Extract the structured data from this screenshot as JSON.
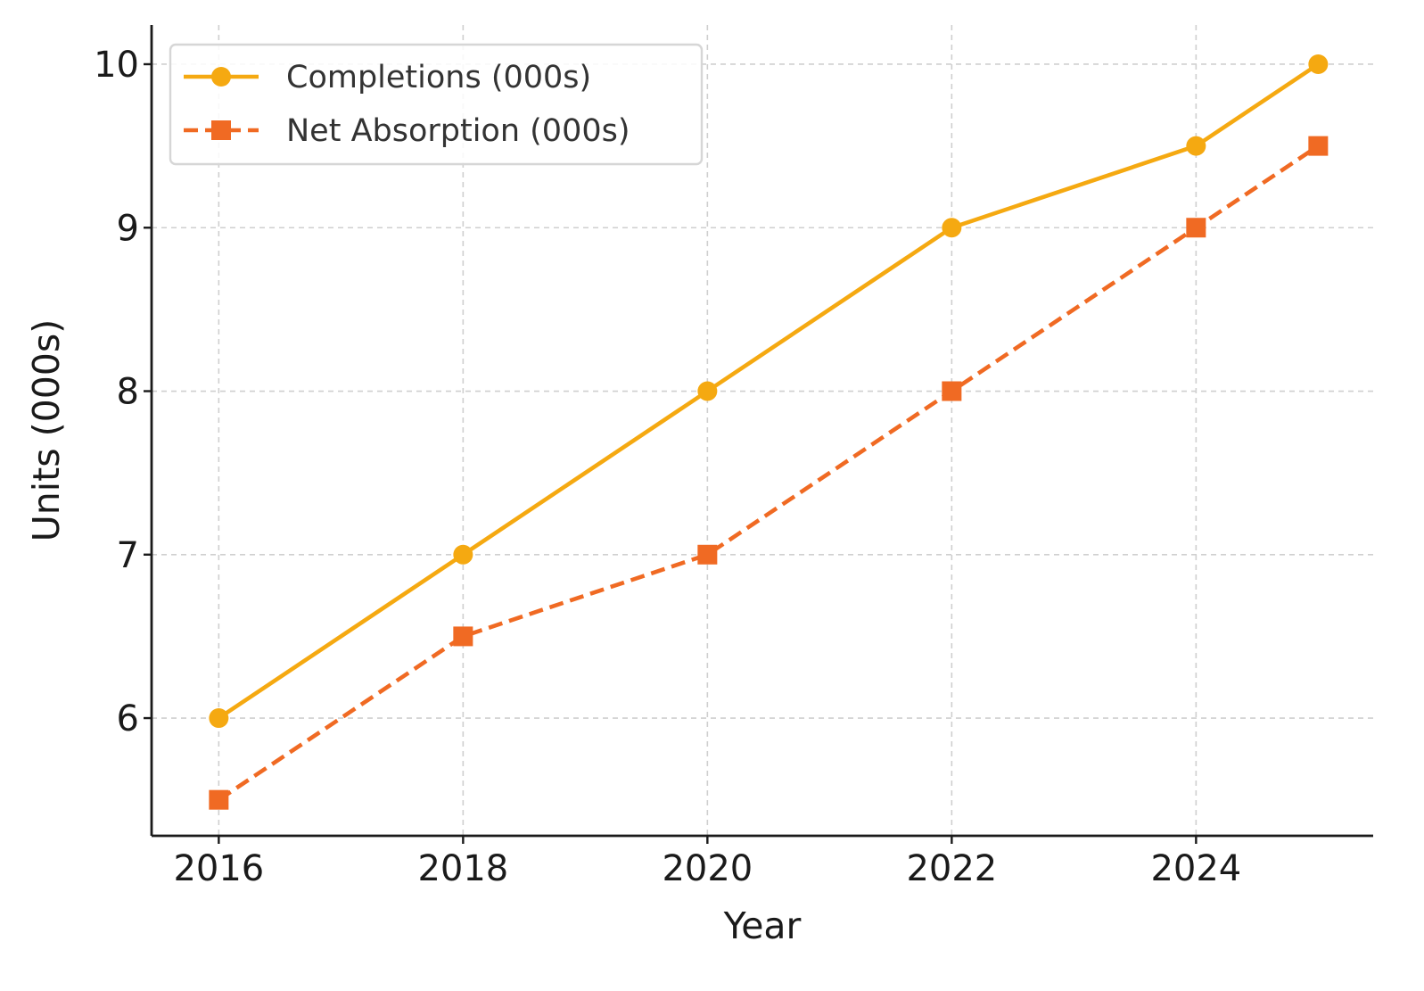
{
  "chart_data": {
    "type": "line",
    "title": "",
    "xlabel": "Year",
    "ylabel": "Units (000s)",
    "x": [
      2016,
      2018,
      2020,
      2022,
      2024,
      2025
    ],
    "xlim": [
      2015.45,
      2025.45
    ],
    "ylim": [
      5.28,
      10.24
    ],
    "xticks": [
      "2016",
      "2018",
      "2020",
      "2022",
      "2024"
    ],
    "yticks": [
      "6",
      "7",
      "8",
      "9",
      "10"
    ],
    "grid": true,
    "legend_position": "top-left",
    "series": [
      {
        "name": "Completions (000s)",
        "values": [
          6,
          7,
          8,
          9,
          9.5,
          10
        ],
        "color": "#F5A911",
        "marker": "circle",
        "linestyle": "solid"
      },
      {
        "name": "Net Absorption (000s)",
        "values": [
          5.5,
          6.5,
          7,
          8,
          9,
          9.5
        ],
        "color": "#F06A23",
        "marker": "square",
        "linestyle": "dashed"
      }
    ]
  }
}
